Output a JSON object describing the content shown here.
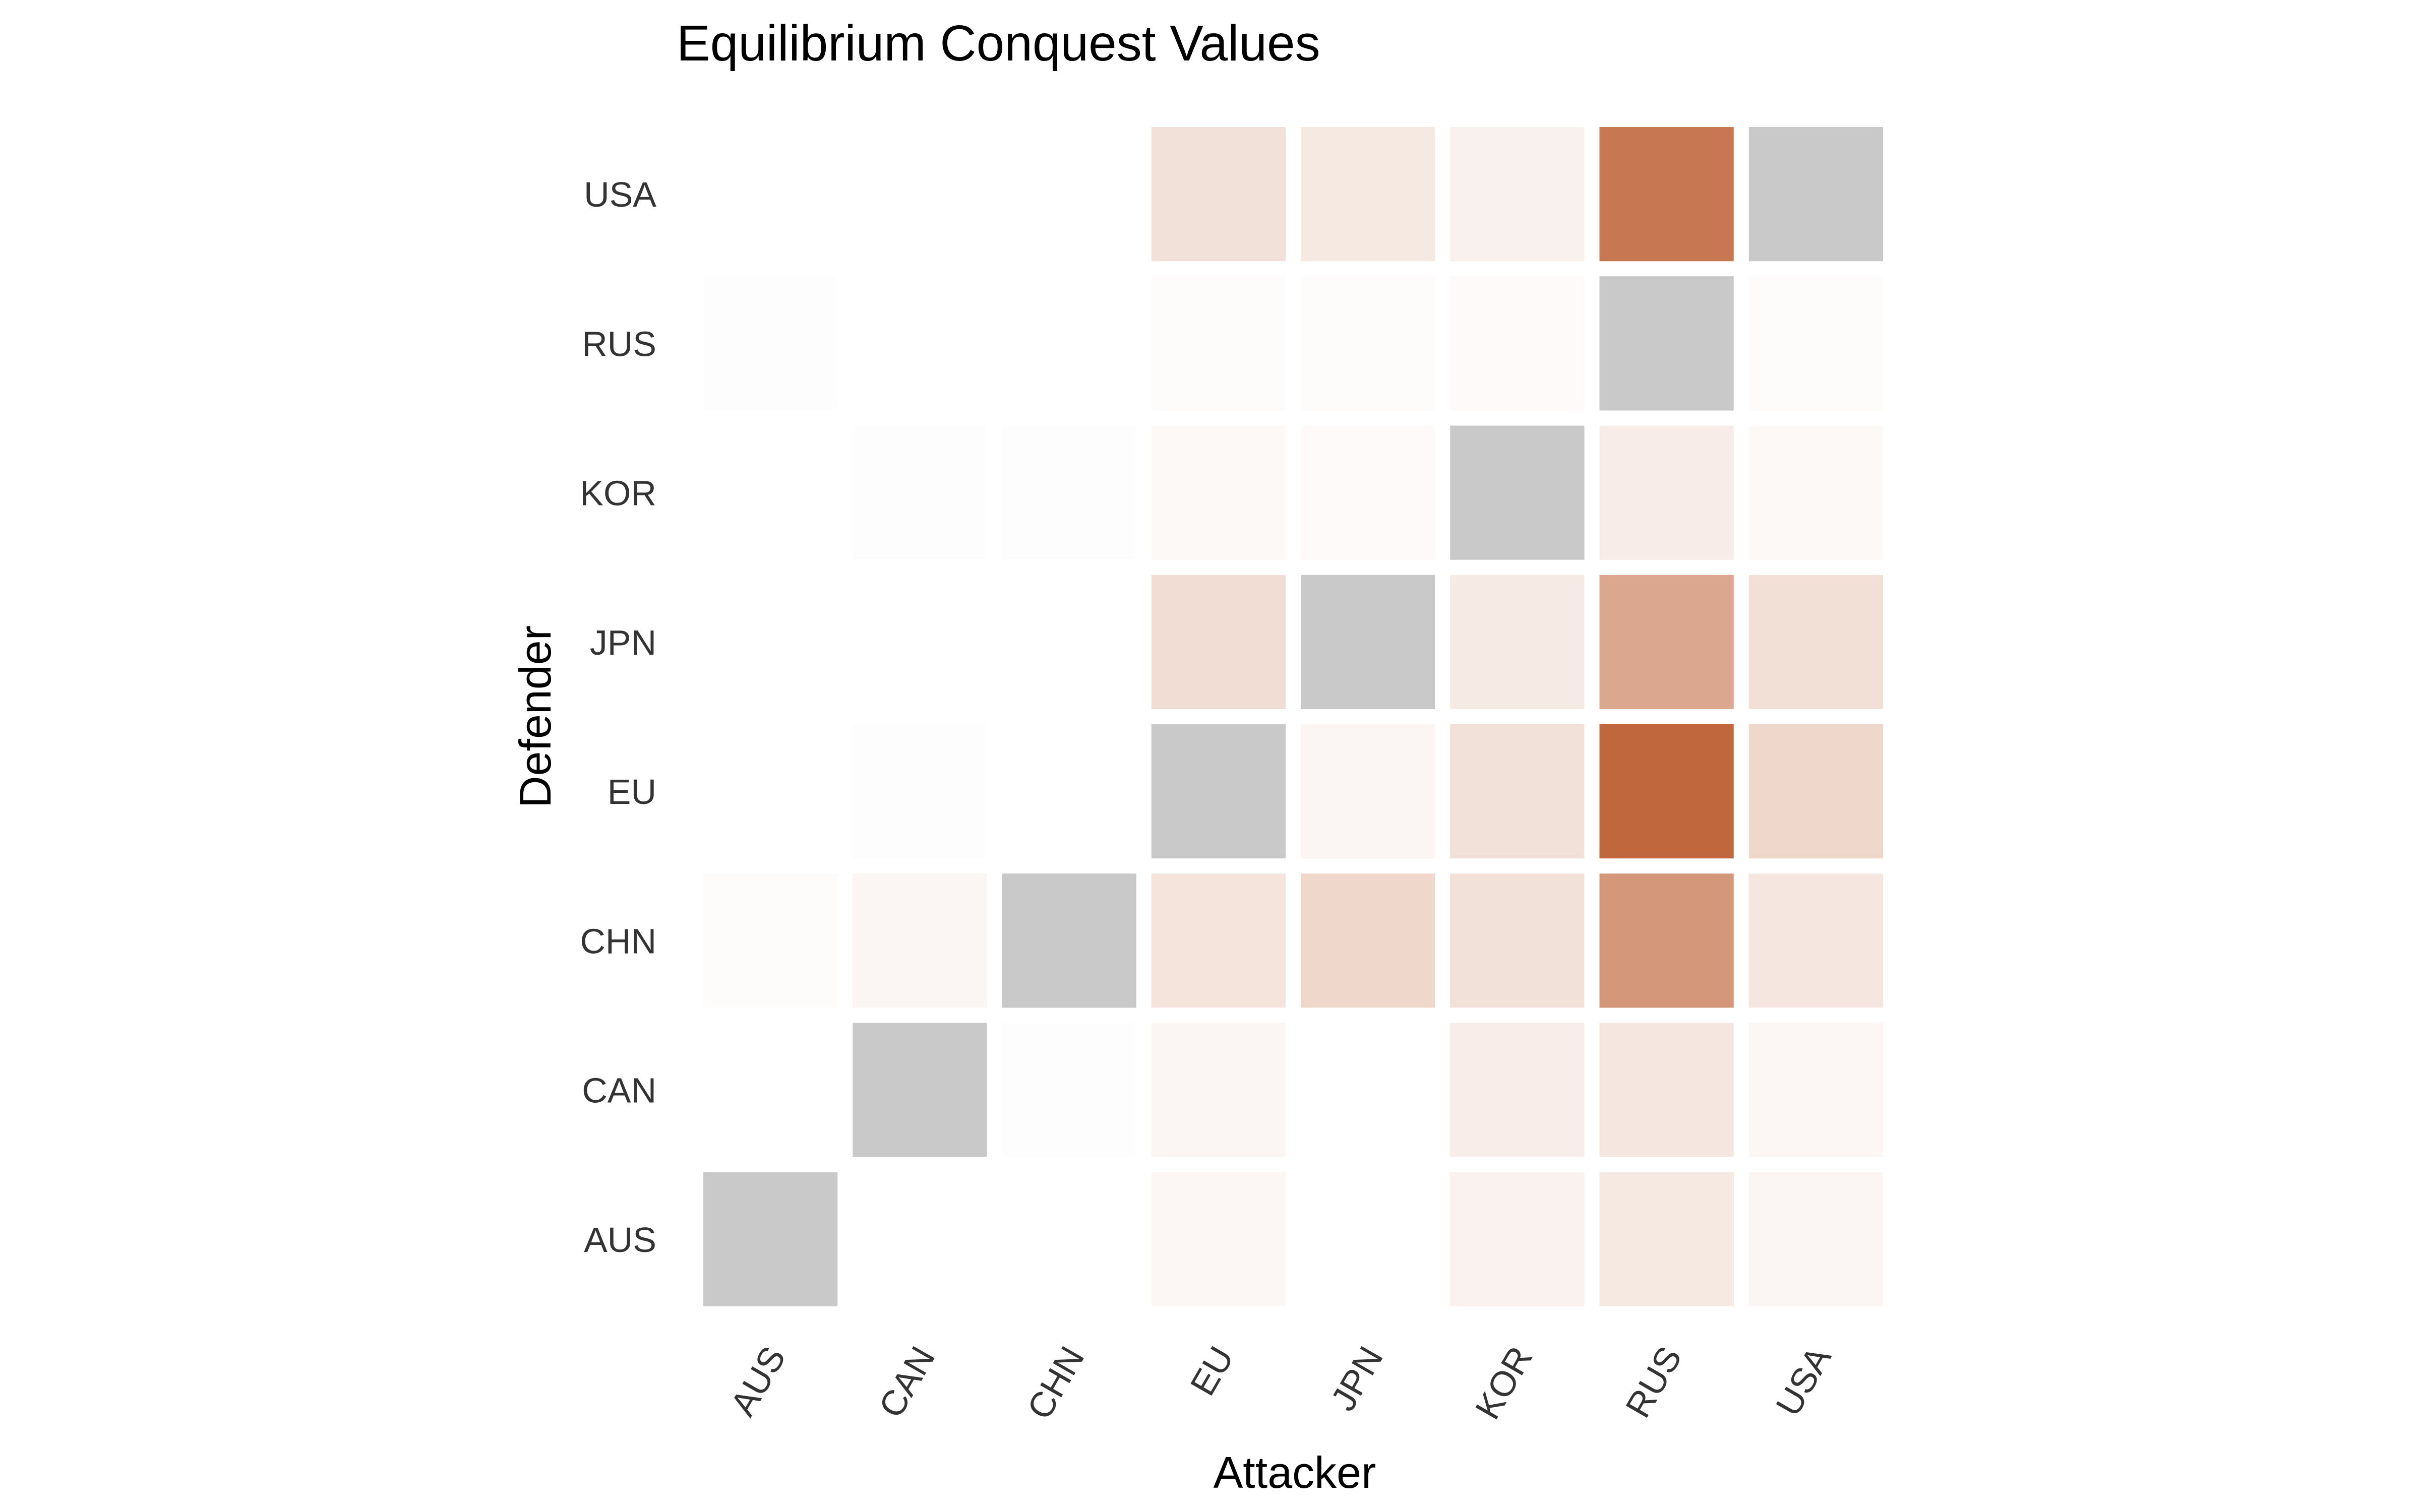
{
  "chart_data": {
    "type": "heatmap",
    "title": "Equilibrium Conquest Values",
    "xlabel": "Attacker",
    "ylabel": "Defender",
    "x": [
      "AUS",
      "CAN",
      "CHN",
      "EU",
      "JPN",
      "KOR",
      "RUS",
      "USA"
    ],
    "y": [
      "AUS",
      "CAN",
      "CHN",
      "EU",
      "JPN",
      "KOR",
      "RUS",
      "USA"
    ],
    "value_range": [
      0,
      1
    ],
    "colors": {
      "low": "#ffffff",
      "high": "#bd5f33",
      "diagonal": "#c9c9c9",
      "background": "#ffffff",
      "tick_text": "#333333",
      "title_text": "#000000"
    },
    "legend": "none",
    "grid": false,
    "cells": [
      {
        "attacker": "AUS",
        "defender": "AUS",
        "value": null
      },
      {
        "attacker": "AUS",
        "defender": "CHN",
        "value": 0.02
      },
      {
        "attacker": "AUS",
        "defender": "RUS",
        "value": 0.01
      },
      {
        "attacker": "CAN",
        "defender": "AUS",
        "value": 0.0
      },
      {
        "attacker": "CAN",
        "defender": "CAN",
        "value": null
      },
      {
        "attacker": "CAN",
        "defender": "CHN",
        "value": 0.06
      },
      {
        "attacker": "CAN",
        "defender": "EU",
        "value": 0.01
      },
      {
        "attacker": "CAN",
        "defender": "KOR",
        "value": 0.01
      },
      {
        "attacker": "CHN",
        "defender": "CAN",
        "value": 0.01
      },
      {
        "attacker": "CHN",
        "defender": "CHN",
        "value": null
      },
      {
        "attacker": "CHN",
        "defender": "KOR",
        "value": 0.01
      },
      {
        "attacker": "EU",
        "defender": "AUS",
        "value": 0.05
      },
      {
        "attacker": "EU",
        "defender": "CAN",
        "value": 0.06
      },
      {
        "attacker": "EU",
        "defender": "CHN",
        "value": 0.17
      },
      {
        "attacker": "EU",
        "defender": "EU",
        "value": null
      },
      {
        "attacker": "EU",
        "defender": "JPN",
        "value": 0.21
      },
      {
        "attacker": "EU",
        "defender": "KOR",
        "value": 0.04
      },
      {
        "attacker": "EU",
        "defender": "RUS",
        "value": 0.02
      },
      {
        "attacker": "EU",
        "defender": "USA",
        "value": 0.19
      },
      {
        "attacker": "JPN",
        "defender": "CHN",
        "value": 0.25
      },
      {
        "attacker": "JPN",
        "defender": "EU",
        "value": 0.06
      },
      {
        "attacker": "JPN",
        "defender": "JPN",
        "value": null
      },
      {
        "attacker": "JPN",
        "defender": "KOR",
        "value": 0.03
      },
      {
        "attacker": "JPN",
        "defender": "RUS",
        "value": 0.02
      },
      {
        "attacker": "JPN",
        "defender": "USA",
        "value": 0.14
      },
      {
        "attacker": "KOR",
        "defender": "AUS",
        "value": 0.08
      },
      {
        "attacker": "KOR",
        "defender": "CAN",
        "value": 0.11
      },
      {
        "attacker": "KOR",
        "defender": "CHN",
        "value": 0.19
      },
      {
        "attacker": "KOR",
        "defender": "EU",
        "value": 0.19
      },
      {
        "attacker": "KOR",
        "defender": "JPN",
        "value": 0.13
      },
      {
        "attacker": "KOR",
        "defender": "KOR",
        "value": null
      },
      {
        "attacker": "KOR",
        "defender": "RUS",
        "value": 0.03
      },
      {
        "attacker": "KOR",
        "defender": "USA",
        "value": 0.09
      },
      {
        "attacker": "RUS",
        "defender": "AUS",
        "value": 0.14
      },
      {
        "attacker": "RUS",
        "defender": "CAN",
        "value": 0.15
      },
      {
        "attacker": "RUS",
        "defender": "CHN",
        "value": 0.65
      },
      {
        "attacker": "RUS",
        "defender": "EU",
        "value": 0.95
      },
      {
        "attacker": "RUS",
        "defender": "JPN",
        "value": 0.55
      },
      {
        "attacker": "RUS",
        "defender": "KOR",
        "value": 0.12
      },
      {
        "attacker": "RUS",
        "defender": "RUS",
        "value": null
      },
      {
        "attacker": "RUS",
        "defender": "USA",
        "value": 0.85
      },
      {
        "attacker": "USA",
        "defender": "AUS",
        "value": 0.06
      },
      {
        "attacker": "USA",
        "defender": "CAN",
        "value": 0.05
      },
      {
        "attacker": "USA",
        "defender": "CHN",
        "value": 0.15
      },
      {
        "attacker": "USA",
        "defender": "EU",
        "value": 0.25
      },
      {
        "attacker": "USA",
        "defender": "JPN",
        "value": 0.2
      },
      {
        "attacker": "USA",
        "defender": "KOR",
        "value": 0.04
      },
      {
        "attacker": "USA",
        "defender": "RUS",
        "value": 0.02
      },
      {
        "attacker": "USA",
        "defender": "USA",
        "value": null
      }
    ]
  }
}
